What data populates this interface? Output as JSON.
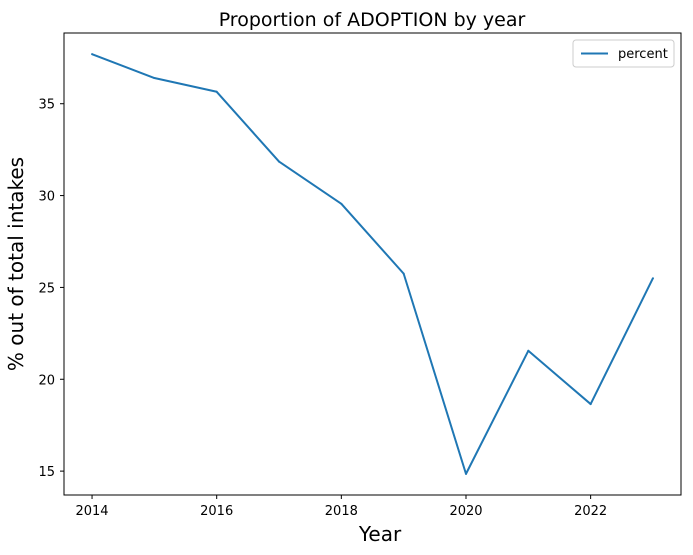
{
  "chart_data": {
    "type": "line",
    "title": "Proportion of ADOPTION by year",
    "xlabel": "Year",
    "ylabel": "% out of total intakes",
    "x": [
      2014,
      2015,
      2016,
      2017,
      2018,
      2019,
      2020,
      2021,
      2022,
      2023
    ],
    "series": [
      {
        "name": "percent",
        "color": "#1f77b4",
        "values": [
          37.7,
          36.4,
          35.65,
          31.85,
          29.55,
          25.75,
          14.85,
          21.55,
          18.65,
          25.5
        ]
      }
    ],
    "xticks": [
      2014,
      2016,
      2018,
      2020,
      2022
    ],
    "yticks": [
      15,
      20,
      25,
      30,
      35
    ],
    "xlim": [
      2013.55,
      2023.45
    ],
    "ylim": [
      13.7,
      38.85
    ],
    "legend": {
      "position": "top-right",
      "label": "percent"
    },
    "grid": false
  }
}
